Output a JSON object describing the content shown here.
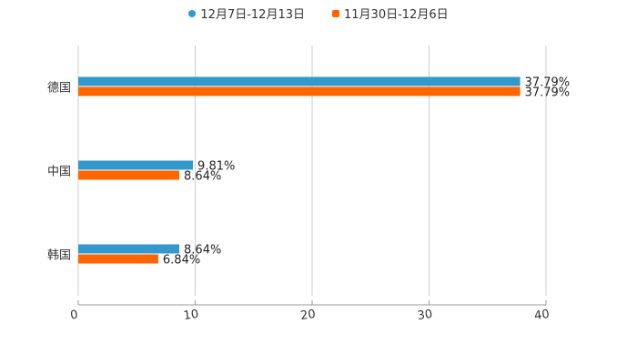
{
  "chart_data": {
    "type": "bar",
    "orientation": "horizontal",
    "categories": [
      "德国",
      "中国",
      "韩国"
    ],
    "series": [
      {
        "name": "12月7日-12月13日",
        "color": "#3399cc",
        "values": [
          37.79,
          9.81,
          8.64
        ],
        "labels": [
          "37.79%",
          "9.81%",
          "8.64%"
        ]
      },
      {
        "name": "11月30日-12月6日",
        "color": "#ff6600",
        "values": [
          37.79,
          8.64,
          6.84
        ],
        "labels": [
          "37.79%",
          "8.64%",
          "6.84%"
        ]
      }
    ],
    "xlim": [
      0,
      40
    ],
    "xticks": [
      "0",
      "10",
      "20",
      "30",
      "40"
    ],
    "grid": true,
    "legend_position": "top-center"
  }
}
